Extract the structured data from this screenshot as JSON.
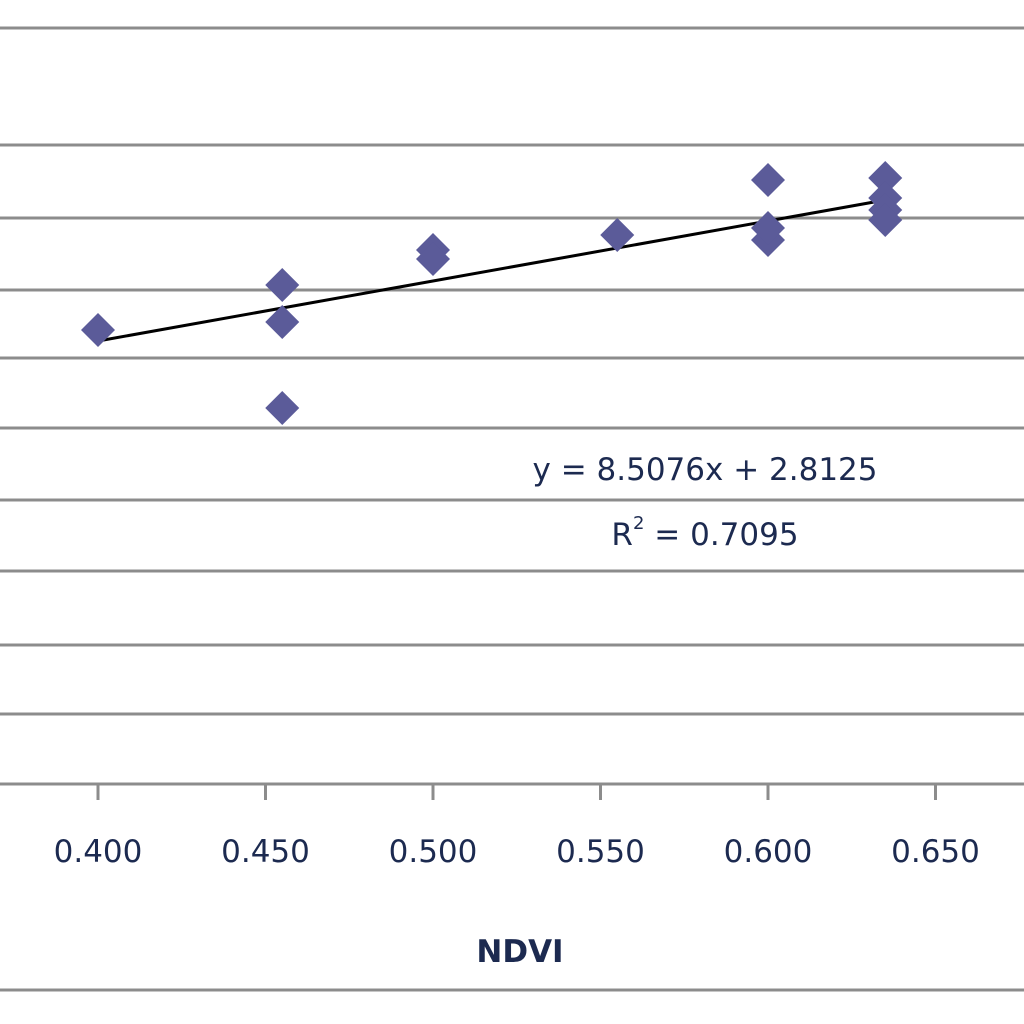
{
  "chart_data": {
    "type": "scatter",
    "title": "",
    "xlabel": "NDVI",
    "ylabel": "",
    "xlim": [
      0.35,
      0.675
    ],
    "ylim": [
      5.7,
      8.3
    ],
    "x_ticks": [
      "0.400",
      "0.450",
      "0.500",
      "0.550",
      "0.600",
      "0.650"
    ],
    "x_tick_values": [
      0.4,
      0.45,
      0.5,
      0.55,
      0.6,
      0.65
    ],
    "y_gridlines": [
      5.7,
      5.9,
      6.1,
      6.3,
      6.5,
      6.7,
      6.9,
      7.1,
      7.3,
      7.5,
      7.7,
      8.3
    ],
    "grid": true,
    "legend": "none",
    "marker": "diamond",
    "colors": {
      "marker": "#5b5b99",
      "trendline": "#000000",
      "grid": "#8c8c8c",
      "text": "#1c2a50"
    },
    "series": [
      {
        "x": [
          0.4,
          0.455,
          0.455,
          0.455,
          0.5,
          0.5,
          0.555,
          0.6,
          0.6,
          0.6,
          0.635,
          0.635,
          0.635,
          0.635
        ],
        "y": [
          6.21,
          6.43,
          6.33,
          5.98,
          6.3,
          6.28,
          6.54,
          6.69,
          6.52,
          6.55,
          6.69,
          6.62,
          6.58,
          6.55
        ]
      }
    ],
    "trendline": {
      "slope": 8.5076,
      "intercept": 2.8125,
      "x_range": [
        0.4,
        0.635
      ],
      "equation": "y = 8.5076x + 2.8125",
      "r2_prefix": "R",
      "r2_exp": "2",
      "r2_value": " = 0.7095"
    }
  }
}
